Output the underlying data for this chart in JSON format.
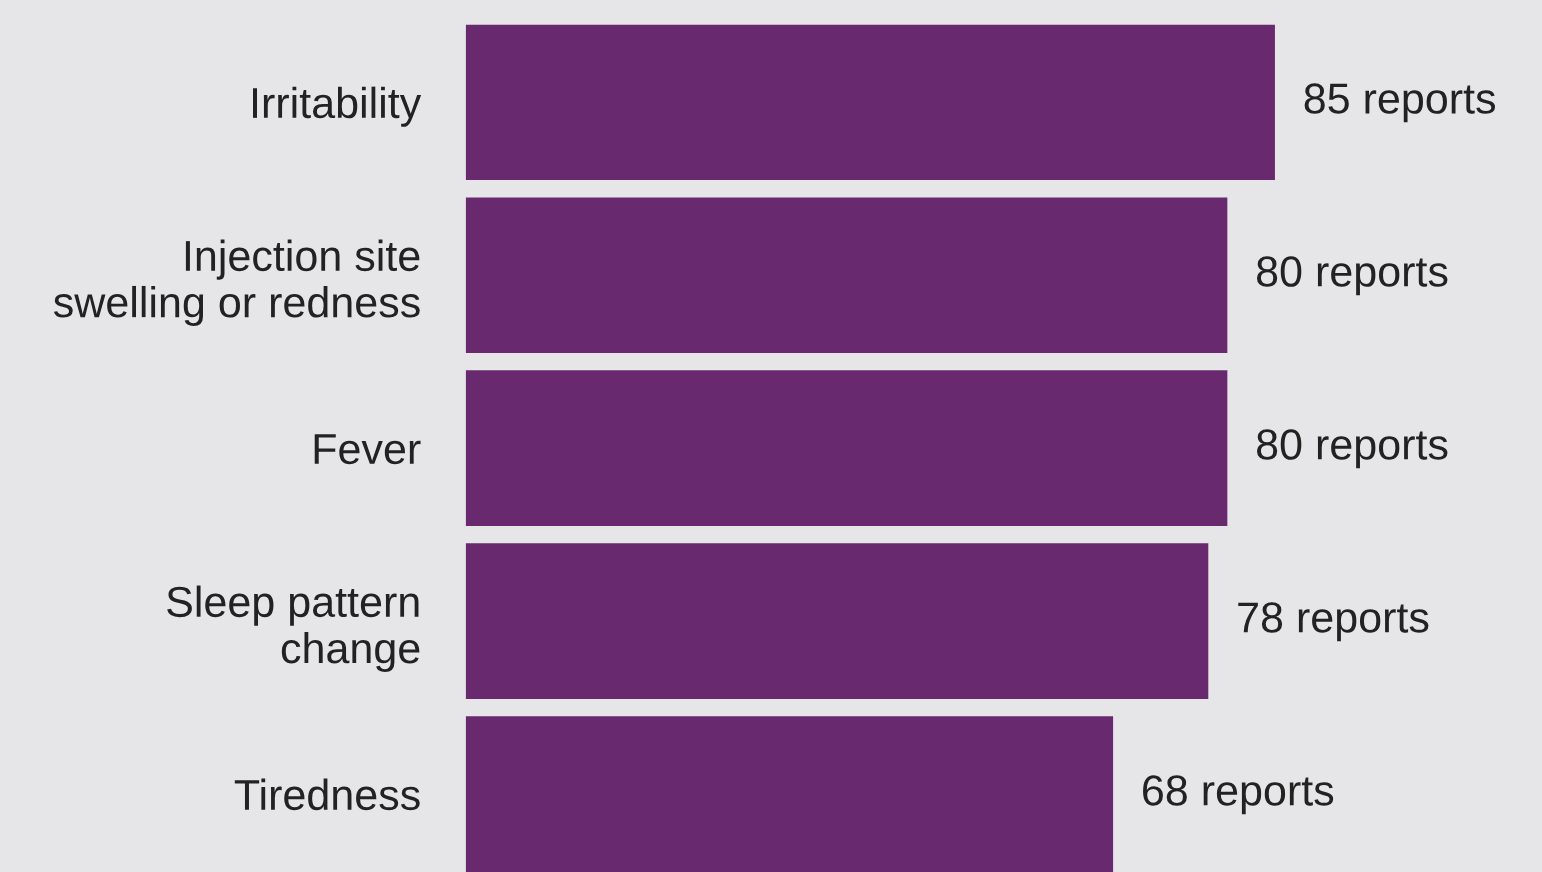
{
  "chart_data": {
    "type": "bar",
    "orientation": "horizontal",
    "categories": [
      "Irritability",
      "Injection site\nswelling or redness",
      "Fever",
      "Sleep pattern\nchange",
      "Tiredness"
    ],
    "values": [
      85,
      80,
      80,
      78,
      68
    ],
    "value_labels": [
      "85 reports",
      "80 reports",
      "80 reports",
      "78 reports",
      "68 reports"
    ],
    "color": "#68296f",
    "tick_labels": "y",
    "grid": false,
    "legend": false
  }
}
